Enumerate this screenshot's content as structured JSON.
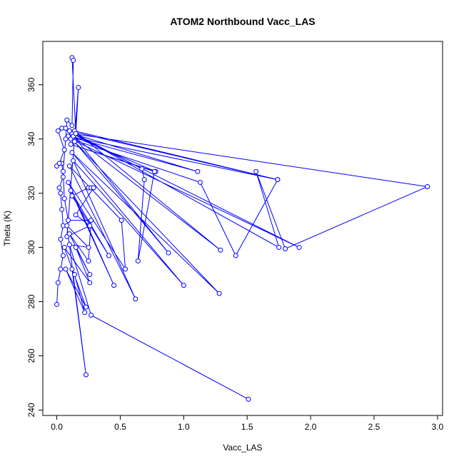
{
  "chart_data": {
    "type": "line",
    "title": "ATOM2 Northbound Vacc_LAS",
    "x_label": "Vacc_LAS",
    "y_label": "Theta (K)",
    "color": "#0000ff",
    "x": [
      0.0,
      0.01,
      0.03,
      0.05,
      0.03,
      0.05,
      0.04,
      0.03,
      0.02,
      0.05,
      0.04,
      0.0,
      0.02,
      0.06,
      0.01,
      0.04,
      0.07,
      0.12,
      2.92,
      1.8,
      1.57,
      1.75,
      0.1,
      1.74,
      0.09,
      1.11,
      0.12,
      1.91,
      0.11,
      1.13,
      1.41,
      1.74,
      0.14,
      1.29,
      0.13,
      0.78,
      0.11,
      0.77,
      0.64,
      0.69,
      0.67,
      0.1,
      0.88,
      0.14,
      1.28,
      0.12,
      1.0,
      0.13,
      0.62,
      0.1,
      0.51,
      0.54,
      0.09,
      0.45,
      0.11,
      0.41,
      0.12,
      0.25,
      0.27,
      0.29,
      0.15,
      0.26,
      0.08,
      0.17,
      0.15,
      0.12,
      0.13,
      0.12,
      0.08,
      0.07,
      0.05,
      0.06,
      0.09,
      0.27,
      0.25,
      0.1,
      0.26,
      0.15,
      0.26,
      0.06,
      0.23,
      0.07,
      0.22,
      0.14,
      0.12,
      0.23,
      0.08,
      0.25,
      0.1,
      0.27,
      1.51
    ],
    "values": [
      279,
      287,
      292,
      297,
      303,
      308,
      314,
      320,
      322,
      326,
      331,
      330,
      331,
      336,
      343,
      344,
      344,
      342,
      322.4,
      299.5,
      328,
      300,
      343,
      325,
      341,
      328,
      342,
      300,
      340,
      324,
      297,
      325,
      343,
      299,
      341,
      328,
      338,
      328,
      295,
      325,
      329,
      343,
      298,
      339,
      283,
      335,
      286,
      332,
      281,
      330,
      310,
      292,
      324,
      286,
      321,
      297,
      319,
      322,
      322,
      322,
      312,
      308,
      304,
      359,
      342,
      370,
      369,
      345,
      347,
      340,
      328,
      318,
      310,
      310,
      295,
      305,
      290,
      300,
      287,
      300,
      278,
      292,
      276,
      290,
      292,
      253,
      308,
      300,
      301,
      275,
      244
    ],
    "xlim": [
      -0.11,
      3.04
    ],
    "ylim": [
      238,
      376
    ],
    "xticks": [
      {
        "value": 0,
        "label": "0.0"
      },
      0.5,
      {
        "value": 1,
        "label": "1.0"
      },
      1.5,
      {
        "value": 2,
        "label": "2.0"
      },
      2.5,
      {
        "value": 3,
        "label": "3.0"
      }
    ],
    "yticks": [
      240,
      260,
      280,
      300,
      320,
      340,
      360
    ]
  }
}
